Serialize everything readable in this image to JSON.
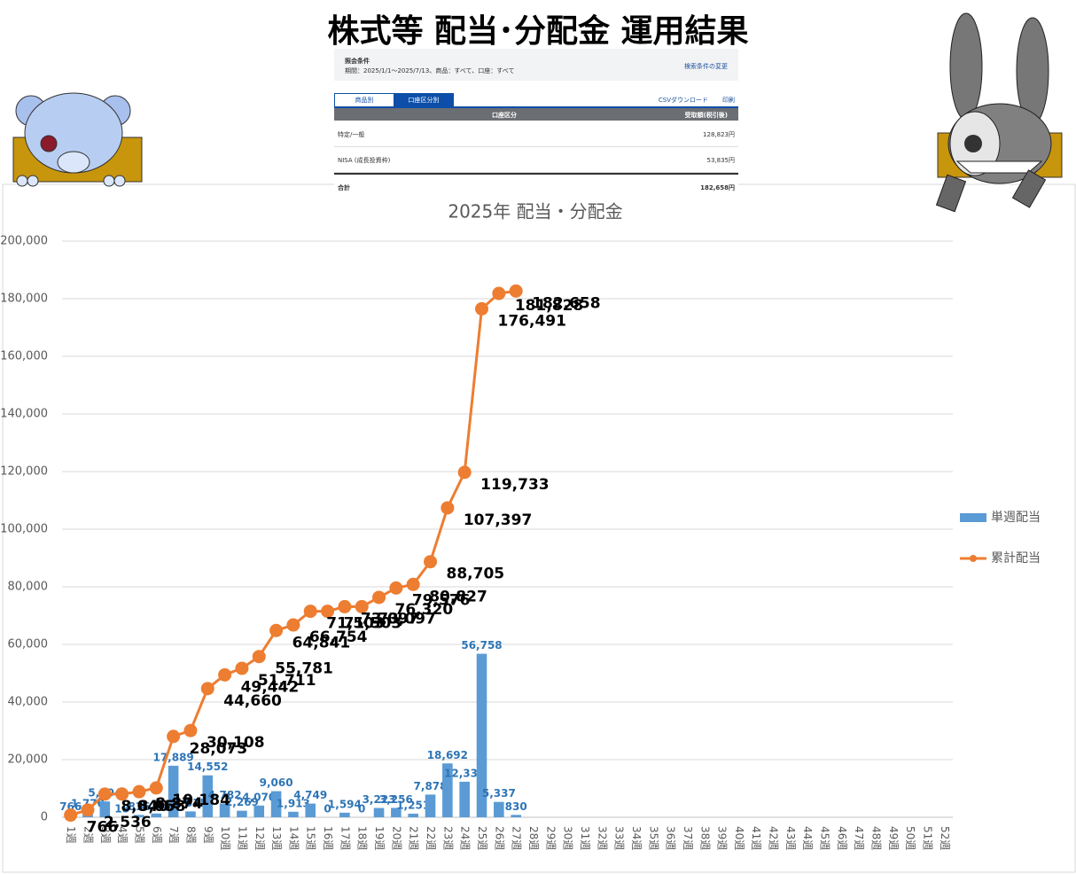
{
  "header": {
    "title": "株式等 配当･分配金 運用結果"
  },
  "panel": {
    "condition_title": "照会条件",
    "condition": "期間：2025/1/1～2025/7/13、商品：すべて、口座：すべて",
    "change": "検索条件の変更",
    "tabs": [
      "商品別",
      "口座区分別"
    ],
    "csv": "CSVダウンロード",
    "print": "印刷",
    "table": {
      "header": [
        "口座区分",
        "受取額(税引後)"
      ],
      "rows": [
        [
          "特定/一般",
          "128,823円"
        ],
        [
          "NISA (成長投資枠)",
          "53,835円"
        ],
        [
          "合計",
          "182,658円"
        ]
      ]
    }
  },
  "chart_data": {
    "type": "combo",
    "title": "2025年 配当・分配金",
    "categories": [
      "1週",
      "2週",
      "3週",
      "4週",
      "5週",
      "6週",
      "7週",
      "8週",
      "9週",
      "10週",
      "11週",
      "12週",
      "13週",
      "14週",
      "15週",
      "16週",
      "17週",
      "18週",
      "19週",
      "20週",
      "21週",
      "22週",
      "23週",
      "24週",
      "25週",
      "26週",
      "27週",
      "28週",
      "29週",
      "30週",
      "31週",
      "32週",
      "33週",
      "34週",
      "35週",
      "36週",
      "37週",
      "38週",
      "39週",
      "40週",
      "41週",
      "42週",
      "43週",
      "44週",
      "45週",
      "46週",
      "47週",
      "48週",
      "49週",
      "50週",
      "51週",
      "52週"
    ],
    "series": [
      {
        "name": "単週配当",
        "type": "bar",
        "color": "#5b9bd5",
        "values": [
          766,
          1770,
          5504,
          18,
          816,
          1310,
          17889,
          2035,
          14552,
          4782,
          2269,
          4070,
          9060,
          1913,
          4749,
          0,
          1594,
          0,
          3223,
          3256,
          1251,
          7878,
          18692,
          12336,
          56758,
          5337,
          830,
          null,
          null,
          null,
          null,
          null,
          null,
          null,
          null,
          null,
          null,
          null,
          null,
          null,
          null,
          null,
          null,
          null,
          null,
          null,
          null,
          null,
          null,
          null,
          null,
          null
        ],
        "value_labels": [
          "766",
          "1,770",
          "5,504",
          "18",
          "816",
          "1,310",
          "17,889",
          "2,035",
          "14,552",
          "4,782",
          "2,269",
          "4,070",
          "9,060",
          "1,913",
          "4,749",
          "0",
          "1,594",
          "0",
          "3,223",
          "3,256",
          "1,251",
          "7,878",
          "18,692",
          "12,336",
          "56,758",
          "5,337",
          "830",
          null,
          null,
          null,
          null,
          null,
          null,
          null,
          null,
          null,
          null,
          null,
          null,
          null,
          null,
          null,
          null,
          null,
          null,
          null,
          null,
          null,
          null,
          null,
          null,
          null
        ]
      },
      {
        "name": "累計配当",
        "type": "line",
        "color": "#ed7d31",
        "values": [
          766,
          2536,
          8040,
          8058,
          8874,
          10184,
          28073,
          30108,
          44660,
          49442,
          51711,
          55781,
          64841,
          66754,
          71503,
          71503,
          73097,
          73097,
          76320,
          79576,
          80827,
          88705,
          107397,
          119733,
          176491,
          181828,
          182658,
          null,
          null,
          null,
          null,
          null,
          null,
          null,
          null,
          null,
          null,
          null,
          null,
          null,
          null,
          null,
          null,
          null,
          null,
          null,
          null,
          null,
          null,
          null,
          null,
          null
        ],
        "value_labels": [
          "766",
          "2,536",
          "8,040",
          "8,058",
          "8,874",
          "10,184",
          "28,073",
          "30,108",
          "44,660",
          "49,442",
          "51,711",
          "55,781",
          "64,841",
          "66,754",
          "71,503",
          "71,503",
          "73,097",
          "73,097",
          "76,320",
          "79,576",
          "80,827",
          "88,705",
          "107,397",
          "119,733",
          "176,491",
          "181,828",
          "182,658",
          null,
          null,
          null,
          null,
          null,
          null,
          null,
          null,
          null,
          null,
          null,
          null,
          null,
          null,
          null,
          null,
          null,
          null,
          null,
          null,
          null,
          null,
          null,
          null,
          null
        ]
      }
    ],
    "ylim": [
      0,
      200000
    ],
    "yticks": [
      0,
      {
        "value": 20000,
        "label": "20,000"
      },
      {
        "value": 40000,
        "label": "40,000"
      },
      {
        "value": 60000,
        "label": "60,000"
      },
      {
        "value": 80000,
        "label": "80,000"
      },
      {
        "value": 100000,
        "label": "100,000"
      },
      {
        "value": 120000,
        "label": "120,000"
      },
      {
        "value": 140000,
        "label": "140,000"
      },
      {
        "value": 160000,
        "label": "160,000"
      },
      {
        "value": 180000,
        "label": "180,000"
      },
      {
        "value": 200000,
        "label": "200,000"
      }
    ],
    "grid": true,
    "legend": "right"
  }
}
